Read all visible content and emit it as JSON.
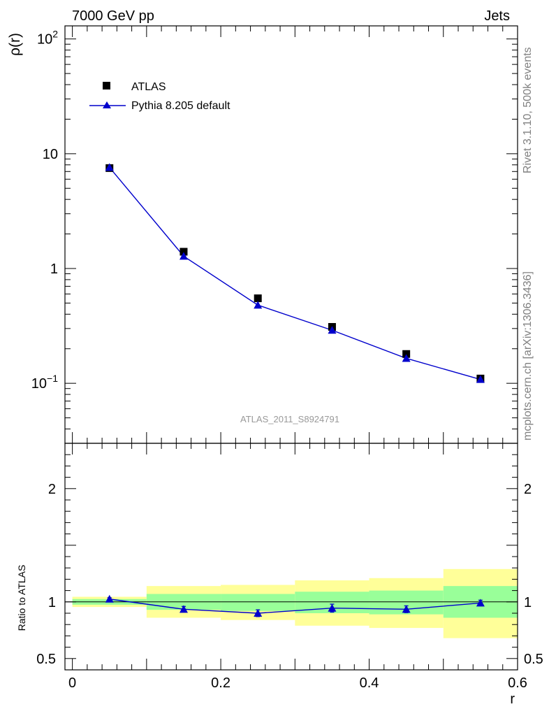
{
  "header": {
    "left": "7000 GeV pp",
    "right": "Jets"
  },
  "side_labels": {
    "rivet": "Rivet 3.1.10,  500k events",
    "mcplots": "mcplots.cern.ch [arXiv:1306.3436]"
  },
  "colors": {
    "data": "#000000",
    "mc": "#0000cc",
    "band_inner": "#99ff99",
    "band_outer": "#ffff99"
  },
  "chart_data": [
    {
      "type": "scatter",
      "panel": "main",
      "ylabel": "ρ(r)",
      "yscale": "log",
      "ylim": [
        0.03,
        130
      ],
      "xlim": [
        -0.01,
        0.6
      ],
      "analysis_tag": "ATLAS_2011_S8924791",
      "legend_position": "top-left",
      "yticks": [
        {
          "value": 0.1,
          "base": "10",
          "exp": "−1"
        },
        {
          "value": 1,
          "label": "1"
        },
        {
          "value": 10,
          "label": "10"
        },
        {
          "value": 100,
          "base": "10",
          "exp": "2"
        }
      ],
      "x": [
        0.05,
        0.15,
        0.25,
        0.35,
        0.45,
        0.55
      ],
      "series": [
        {
          "name": "ATLAS",
          "marker": "square",
          "values": [
            7.5,
            1.4,
            0.55,
            0.31,
            0.18,
            0.11
          ]
        },
        {
          "name": "Pythia 8.205 default",
          "marker": "triangle",
          "line": true,
          "values": [
            7.6,
            1.28,
            0.48,
            0.29,
            0.165,
            0.108
          ]
        }
      ]
    },
    {
      "type": "line",
      "panel": "ratio",
      "ylabel": "Ratio to ATLAS",
      "xlabel": "r",
      "ylim": [
        0.4,
        2.4
      ],
      "xlim": [
        -0.01,
        0.6
      ],
      "xticks": [
        {
          "value": 0,
          "label": "0"
        },
        {
          "value": 0.2,
          "label": "0.2"
        },
        {
          "value": 0.4,
          "label": "0.4"
        },
        {
          "value": 0.6,
          "label": "0.6"
        }
      ],
      "yticks": [
        {
          "value": 0.5,
          "label": "0.5"
        },
        {
          "value": 1,
          "label": "1"
        },
        {
          "value": 2,
          "label": "2"
        }
      ],
      "bands": [
        {
          "x0": 0.0,
          "x1": 0.1,
          "inner": [
            0.975,
            1.025
          ],
          "outer": [
            0.955,
            1.045
          ]
        },
        {
          "x0": 0.1,
          "x1": 0.2,
          "inner": [
            0.93,
            1.07
          ],
          "outer": [
            0.86,
            1.14
          ]
        },
        {
          "x0": 0.2,
          "x1": 0.3,
          "inner": [
            0.92,
            1.07
          ],
          "outer": [
            0.84,
            1.15
          ]
        },
        {
          "x0": 0.3,
          "x1": 0.4,
          "inner": [
            0.9,
            1.09
          ],
          "outer": [
            0.79,
            1.19
          ]
        },
        {
          "x0": 0.4,
          "x1": 0.5,
          "inner": [
            0.89,
            1.1
          ],
          "outer": [
            0.77,
            1.21
          ]
        },
        {
          "x0": 0.5,
          "x1": 0.6,
          "inner": [
            0.86,
            1.14
          ],
          "outer": [
            0.68,
            1.29
          ]
        }
      ],
      "series": [
        {
          "name": "Pythia 8.205 default / ATLAS",
          "x": [
            0.05,
            0.15,
            0.25,
            0.35,
            0.45,
            0.55
          ],
          "values": [
            1.025,
            0.935,
            0.9,
            0.945,
            0.935,
            0.99
          ],
          "errors": [
            0.012,
            0.025,
            0.03,
            0.035,
            0.03,
            0.025
          ]
        }
      ]
    }
  ]
}
